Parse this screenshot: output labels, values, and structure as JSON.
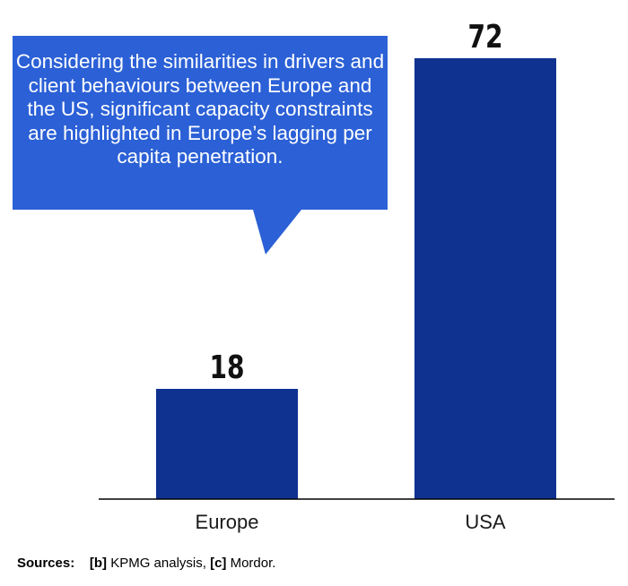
{
  "chart_data": {
    "type": "bar",
    "categories": [
      "Europe",
      "USA"
    ],
    "values": [
      18,
      72
    ],
    "title": "",
    "xlabel": "",
    "ylabel": "",
    "ylim": [
      0,
      80
    ],
    "grid": false,
    "bar_color": "#0f3291"
  },
  "callout": {
    "text": "Considering the similarities in drivers and client behaviours between Europe and the US, significant capacity constraints are highlighted in Europe’s lagging per capita penetration.",
    "color": "#2b60d6"
  },
  "sources": {
    "label": "Sources:",
    "ref_b": "[b]",
    "text_b": " KPMG analysis, ",
    "ref_c": "[c]",
    "text_c": " Mordor."
  }
}
